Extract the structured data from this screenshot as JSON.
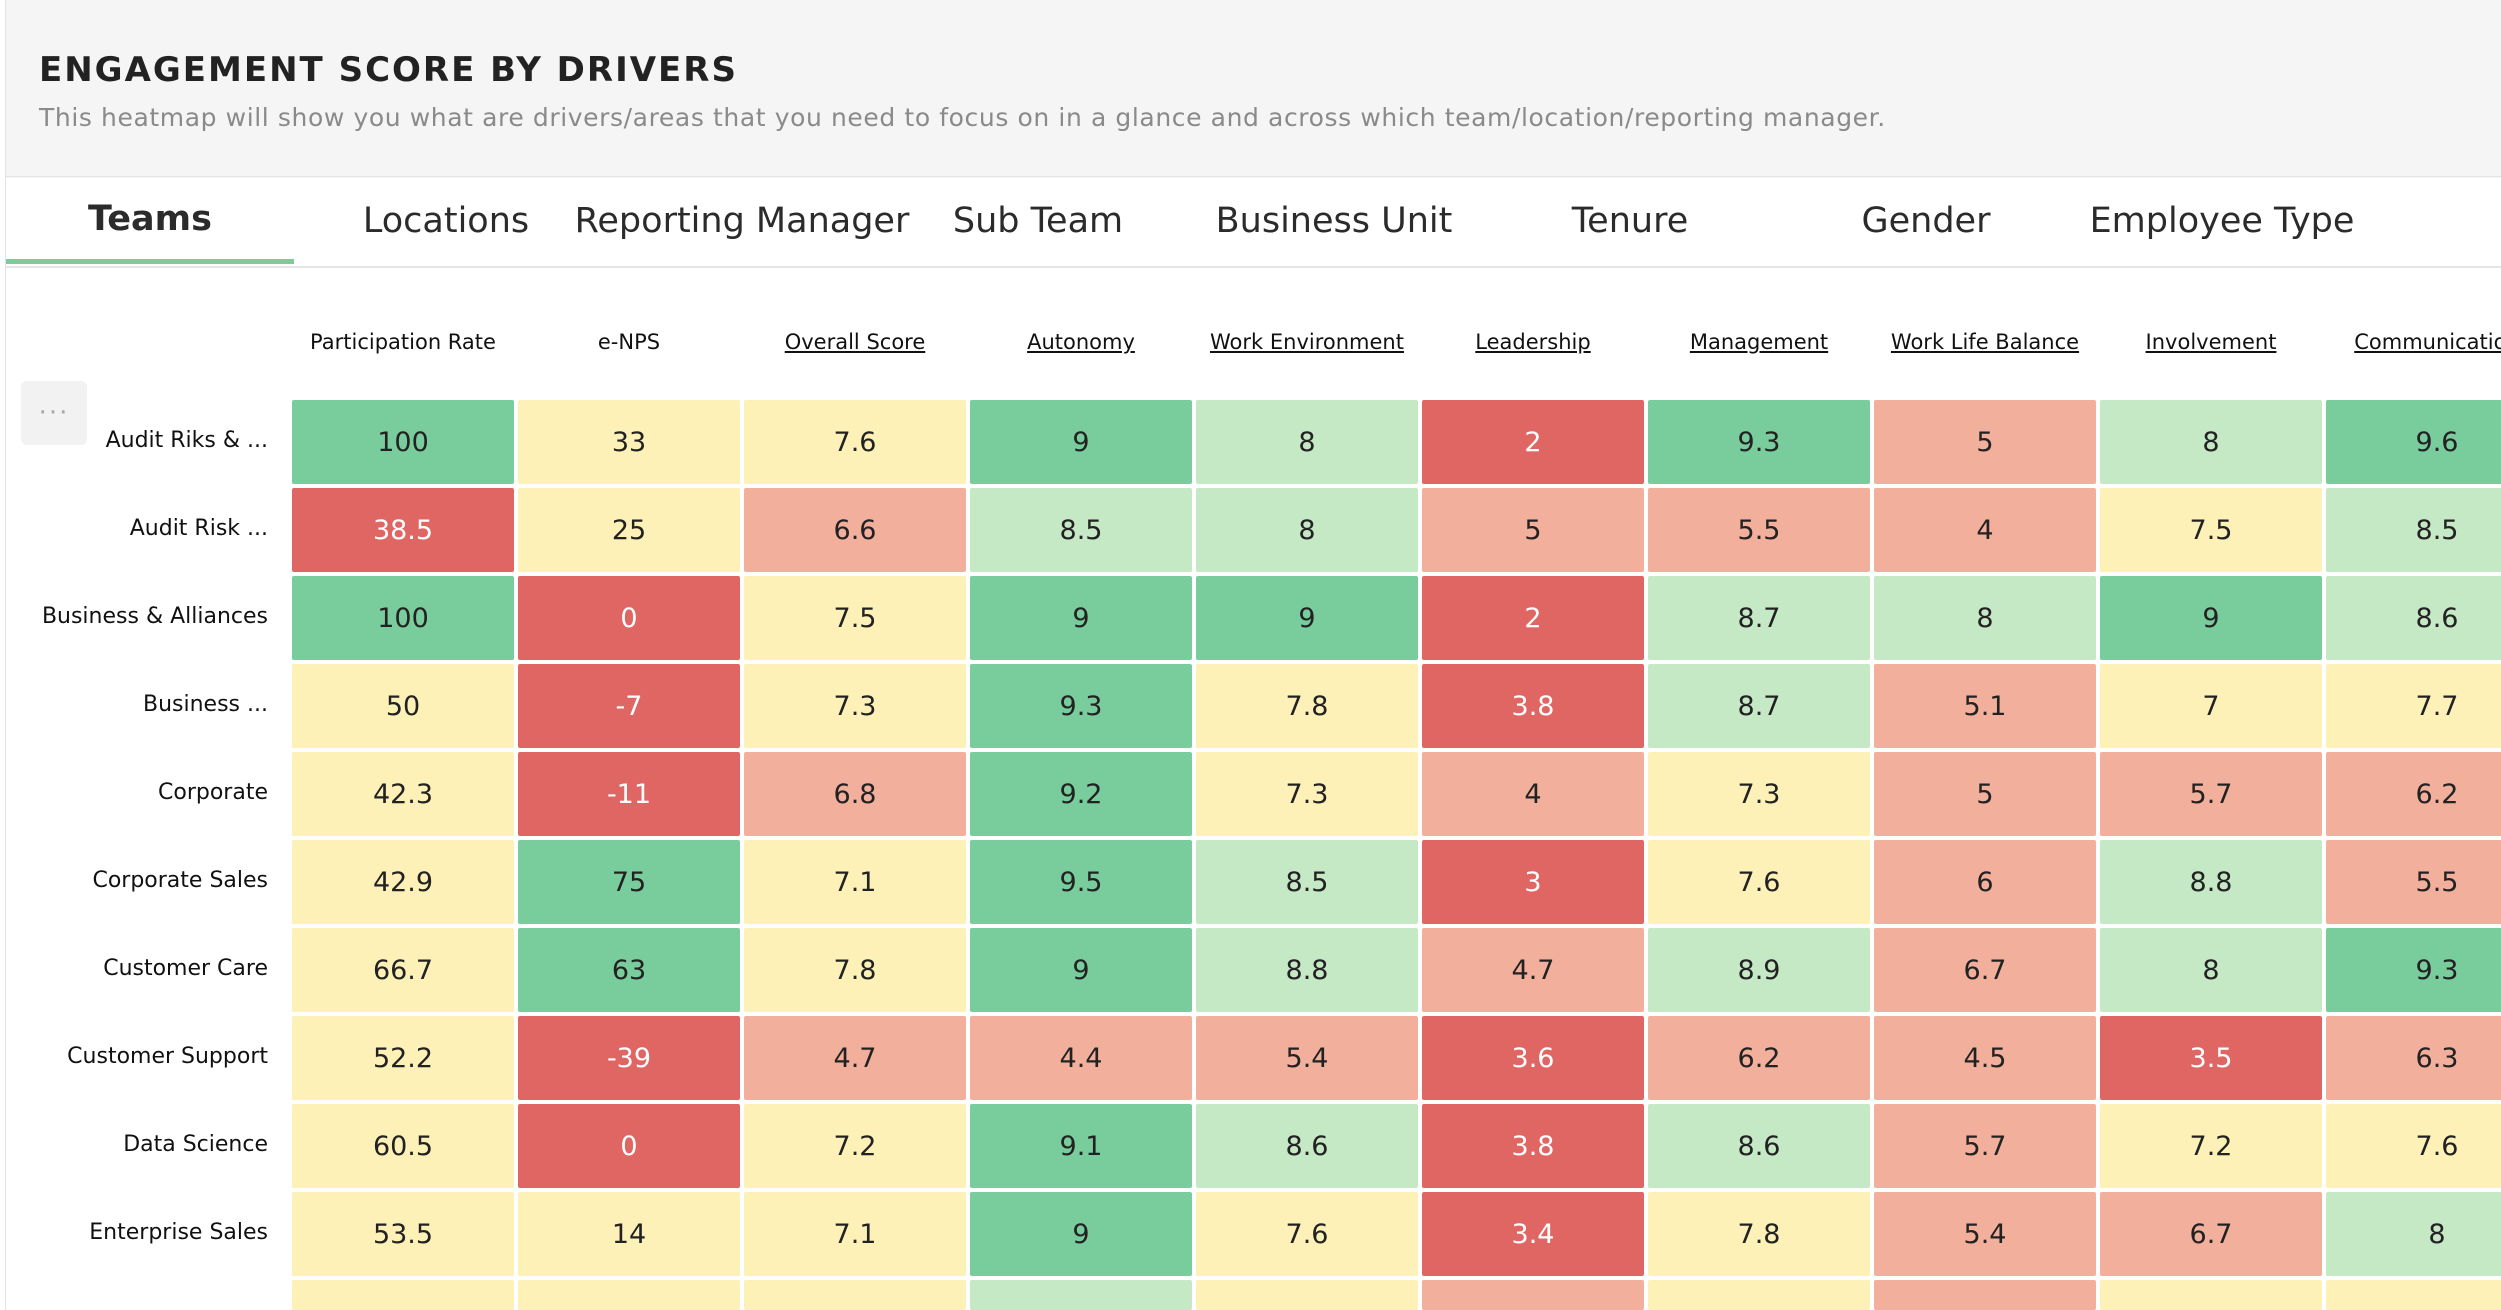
{
  "header": {
    "title": "ENGAGEMENT SCORE BY DRIVERS",
    "subtitle": "This heatmap will show you what are drivers/areas that you need to focus on in a glance and across which team/location/reporting manager."
  },
  "tabs": [
    {
      "label": "Teams",
      "active": true
    },
    {
      "label": "Locations",
      "active": false
    },
    {
      "label": "Reporting Manager",
      "active": false
    },
    {
      "label": "Sub Team",
      "active": false
    },
    {
      "label": "Business Unit",
      "active": false
    },
    {
      "label": "Tenure",
      "active": false
    },
    {
      "label": "Gender",
      "active": false
    },
    {
      "label": "Employee Type",
      "active": false
    }
  ],
  "more_button": {
    "label": "···",
    "icon": "more-icon"
  },
  "colors": {
    "dark_green": "#79cc9c",
    "light_green": "#c5e8c5",
    "yellow": "#fdf1b7",
    "salmon": "#f2af9b",
    "dark_red": "#e06664",
    "tab_accent": "#7ccb98"
  },
  "chart_data": {
    "type": "heatmap",
    "columns": [
      {
        "label": "Participation Rate",
        "link": false
      },
      {
        "label": "e-NPS",
        "link": false
      },
      {
        "label": "Overall Score",
        "link": true
      },
      {
        "label": "Autonomy",
        "link": true
      },
      {
        "label": "Work Environment",
        "link": true
      },
      {
        "label": "Leadership",
        "link": true
      },
      {
        "label": "Management",
        "link": true
      },
      {
        "label": "Work Life Balance",
        "link": true
      },
      {
        "label": "Involvement",
        "link": true
      },
      {
        "label": "Communication",
        "link": true
      }
    ],
    "rows": [
      {
        "label": "Audit Riks & ...",
        "values": [
          "100",
          "33",
          "7.6",
          "9",
          "8",
          "2",
          "9.3",
          "5",
          "8",
          "9.6"
        ],
        "levels": [
          "dark_green",
          "yellow",
          "yellow",
          "dark_green",
          "light_green",
          "dark_red",
          "dark_green",
          "salmon",
          "light_green",
          "dark_green"
        ]
      },
      {
        "label": "Audit Risk ...",
        "values": [
          "38.5",
          "25",
          "6.6",
          "8.5",
          "8",
          "5",
          "5.5",
          "4",
          "7.5",
          "8.5"
        ],
        "levels": [
          "dark_red",
          "yellow",
          "salmon",
          "light_green",
          "light_green",
          "salmon",
          "salmon",
          "salmon",
          "yellow",
          "light_green"
        ]
      },
      {
        "label": "Business & Alliances",
        "values": [
          "100",
          "0",
          "7.5",
          "9",
          "9",
          "2",
          "8.7",
          "8",
          "9",
          "8.6"
        ],
        "levels": [
          "dark_green",
          "dark_red",
          "yellow",
          "dark_green",
          "dark_green",
          "dark_red",
          "light_green",
          "light_green",
          "dark_green",
          "light_green"
        ]
      },
      {
        "label": "Business ...",
        "values": [
          "50",
          "-7",
          "7.3",
          "9.3",
          "7.8",
          "3.8",
          "8.7",
          "5.1",
          "7",
          "7.7"
        ],
        "levels": [
          "yellow",
          "dark_red",
          "yellow",
          "dark_green",
          "yellow",
          "dark_red",
          "light_green",
          "salmon",
          "yellow",
          "yellow"
        ]
      },
      {
        "label": "Corporate",
        "values": [
          "42.3",
          "-11",
          "6.8",
          "9.2",
          "7.3",
          "4",
          "7.3",
          "5",
          "5.7",
          "6.2"
        ],
        "levels": [
          "yellow",
          "dark_red",
          "salmon",
          "dark_green",
          "yellow",
          "salmon",
          "yellow",
          "salmon",
          "salmon",
          "salmon"
        ]
      },
      {
        "label": "Corporate Sales",
        "values": [
          "42.9",
          "75",
          "7.1",
          "9.5",
          "8.5",
          "3",
          "7.6",
          "6",
          "8.8",
          "5.5"
        ],
        "levels": [
          "yellow",
          "dark_green",
          "yellow",
          "dark_green",
          "light_green",
          "dark_red",
          "yellow",
          "salmon",
          "light_green",
          "salmon"
        ]
      },
      {
        "label": "Customer Care",
        "values": [
          "66.7",
          "63",
          "7.8",
          "9",
          "8.8",
          "4.7",
          "8.9",
          "6.7",
          "8",
          "9.3"
        ],
        "levels": [
          "yellow",
          "dark_green",
          "yellow",
          "dark_green",
          "light_green",
          "salmon",
          "light_green",
          "salmon",
          "light_green",
          "dark_green"
        ]
      },
      {
        "label": "Customer Support",
        "values": [
          "52.2",
          "-39",
          "4.7",
          "4.4",
          "5.4",
          "3.6",
          "6.2",
          "4.5",
          "3.5",
          "6.3"
        ],
        "levels": [
          "yellow",
          "dark_red",
          "salmon",
          "salmon",
          "salmon",
          "dark_red",
          "salmon",
          "salmon",
          "dark_red",
          "salmon"
        ]
      },
      {
        "label": "Data Science",
        "values": [
          "60.5",
          "0",
          "7.2",
          "9.1",
          "8.6",
          "3.8",
          "8.6",
          "5.7",
          "7.2",
          "7.6"
        ],
        "levels": [
          "yellow",
          "dark_red",
          "yellow",
          "dark_green",
          "light_green",
          "dark_red",
          "light_green",
          "salmon",
          "yellow",
          "yellow"
        ]
      },
      {
        "label": "Enterprise Sales",
        "values": [
          "53.5",
          "14",
          "7.1",
          "9",
          "7.6",
          "3.4",
          "7.8",
          "5.4",
          "6.7",
          "8"
        ],
        "levels": [
          "yellow",
          "yellow",
          "yellow",
          "dark_green",
          "yellow",
          "dark_red",
          "yellow",
          "salmon",
          "salmon",
          "light_green"
        ]
      }
    ],
    "partial_row_levels": [
      "yellow",
      "yellow",
      "yellow",
      "light_green",
      "yellow",
      "salmon",
      "yellow",
      "salmon",
      "yellow",
      "yellow"
    ]
  }
}
